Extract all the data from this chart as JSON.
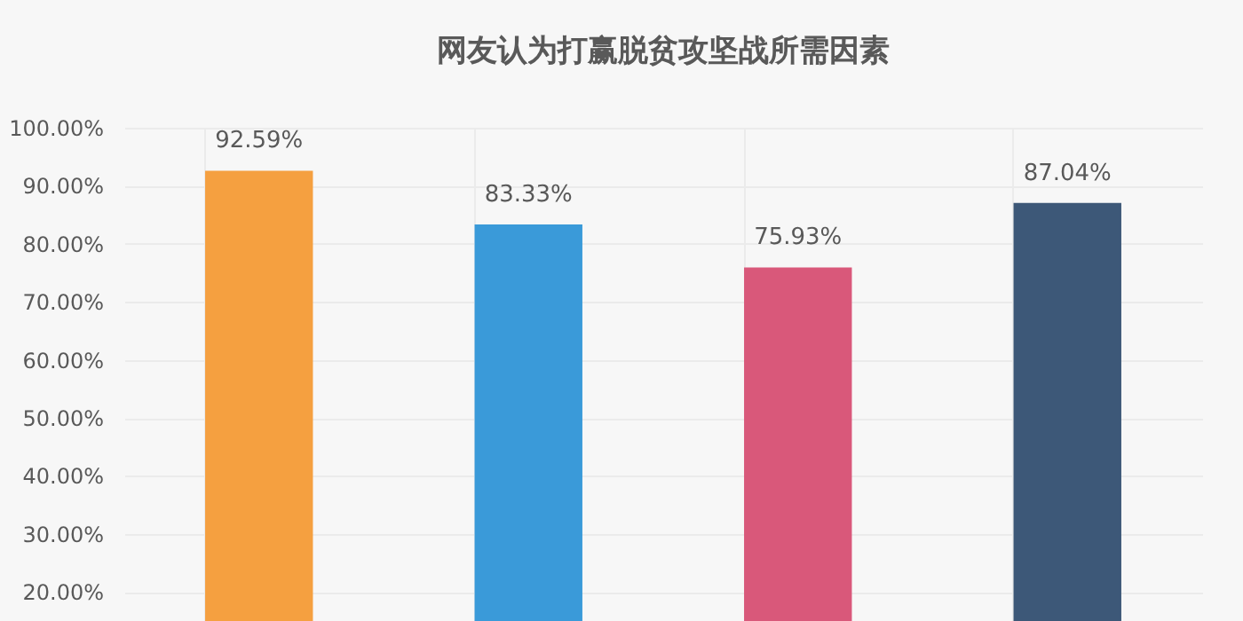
{
  "chart_data": {
    "type": "bar",
    "title": "网友认为打赢脱贫攻坚战所需因素",
    "categories": [
      null,
      null,
      null,
      null
    ],
    "values": [
      92.59,
      83.33,
      75.93,
      87.04
    ],
    "colors": [
      "#f5a040",
      "#3a9ad9",
      "#d9587a",
      "#3d5878"
    ],
    "value_labels": [
      "92.59%",
      "83.33%",
      "75.93%",
      "87.04%"
    ],
    "ylim": [
      15,
      100
    ],
    "yticks": [
      {
        "value": 20,
        "label": "20.00%"
      },
      {
        "value": 30,
        "label": "30.00%"
      },
      {
        "value": 40,
        "label": "40.00%"
      },
      {
        "value": 50,
        "label": "50.00%"
      },
      {
        "value": 60,
        "label": "60.00%"
      },
      {
        "value": 70,
        "label": "70.00%"
      },
      {
        "value": 80,
        "label": "80.00%"
      },
      {
        "value": 90,
        "label": "90.00%"
      },
      {
        "value": 100,
        "label": "100.00%"
      }
    ],
    "grid": true,
    "tick_labels": "y"
  }
}
